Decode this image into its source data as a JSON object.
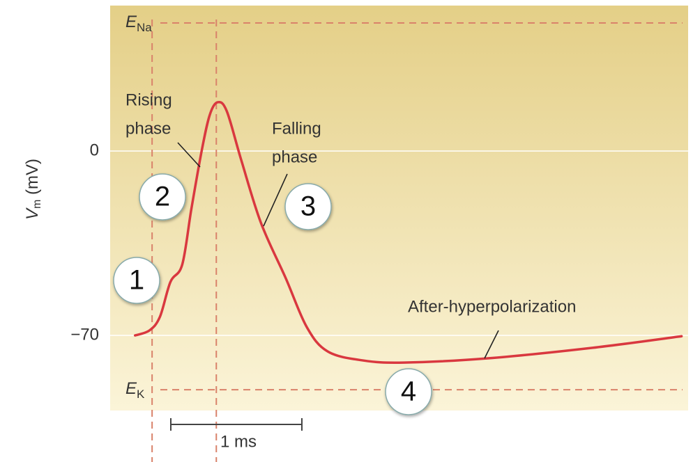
{
  "chart_data": {
    "type": "line",
    "y_label": {
      "main": "V",
      "sub": "m",
      "unit": "(mV)"
    },
    "x": [
      0.19,
      0.3,
      0.38,
      0.46,
      0.55,
      0.62,
      0.7,
      0.76,
      0.82,
      0.89,
      1.0,
      1.15,
      1.34,
      1.5,
      1.66,
      1.93,
      2.24,
      2.88,
      3.68,
      4.36
    ],
    "series": [
      {
        "color": "#d9383f",
        "values": [
          -70,
          -68.1,
          -62.9,
          -49.7,
          -43.1,
          -21.9,
          0.5,
          13.7,
          18.5,
          15.1,
          -3.4,
          -27.2,
          -48.3,
          -66.8,
          -76.1,
          -79.5,
          -80.3,
          -78.7,
          -74.7,
          -70.3
        ]
      }
    ],
    "xlim": [
      0,
      4.41
    ],
    "ylim": [
      -98.5,
      55.2
    ],
    "yticks": [
      0,
      {
        "value": -70,
        "label": "−70"
      }
    ],
    "grid": true,
    "reference_lines": [
      {
        "main": "E",
        "sub": "Na",
        "value": 48.6
      },
      {
        "main": "E",
        "sub": "K",
        "value": -90.6
      }
    ],
    "vertical_lines": [
      0.32,
      0.81
    ],
    "scale_bar": {
      "label": "1 ms",
      "value": 1
    },
    "annotations": [
      {
        "lines": [
          "Rising",
          "phase"
        ]
      },
      {
        "lines": [
          "Falling",
          "phase"
        ]
      },
      {
        "lines": [
          "After-hyperpolarization"
        ]
      }
    ],
    "phase_markers": [
      "1",
      "2",
      "3",
      "4"
    ]
  }
}
